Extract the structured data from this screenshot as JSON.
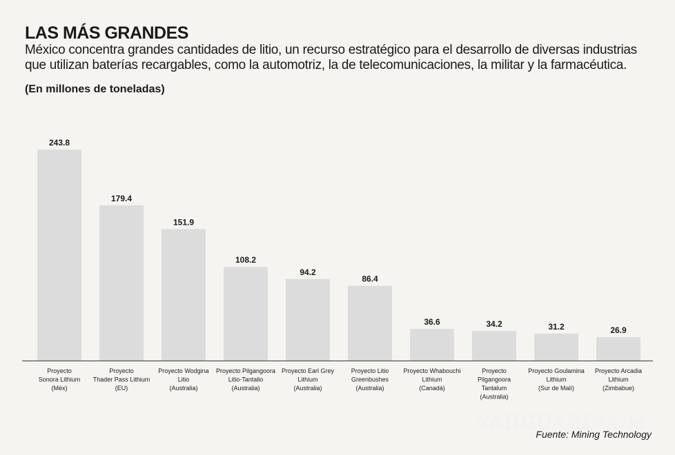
{
  "title": "LAS MÁS GRANDES",
  "subtitle": "México concentra  grandes cantidades de litio, un recurso estratégico para el desarrollo de diversas industrias que utilizan baterías recargables, como la automotriz, la de telecomunicaciones, la militar y la farmacéutica.",
  "unit_label": "(En millones de toneladas)",
  "source": "Fuente: Mining Technology",
  "watermark": "VANGUARDIA.M",
  "chart_data": {
    "type": "bar",
    "title": "LAS MÁS GRANDES",
    "ylabel": "(En millones de toneladas)",
    "ylim": [
      0,
      243.8
    ],
    "grid": false,
    "bar_color": "#dcdcdc",
    "categories": [
      [
        "Proyecto",
        "Sonora Lithium",
        "(Méx)"
      ],
      [
        "Proyecto",
        "Thader Pass Lithium",
        "(EU)"
      ],
      [
        "Proyecto Wodgina",
        "Litio",
        "(Australia)"
      ],
      [
        "Proyecto Pilgangoora",
        "Litio-Tantalio",
        "(Australia)"
      ],
      [
        "Proyecto Earl Grey",
        "Lithium",
        "(Australia)"
      ],
      [
        "Proyecto Litio",
        "Greenbushes",
        "(Australia)"
      ],
      [
        "Proyecto Whabouchi",
        "Lithium",
        "(Canadá)"
      ],
      [
        "Proyecto",
        "Pilgangoora",
        "Tantalum",
        "(Australia)"
      ],
      [
        "Proyecto Goulamina",
        "Lithium",
        "(Sur de Malí)"
      ],
      [
        "Proyecto Arcadia",
        "Lithium",
        "(Zimbabue)"
      ]
    ],
    "values": [
      243.8,
      179.4,
      151.9,
      108.2,
      94.2,
      86.4,
      36.6,
      34.2,
      31.2,
      26.9
    ],
    "value_labels": [
      "243.8",
      "179.4",
      "151.9",
      "108.2",
      "94.2",
      "86.4",
      "36.6",
      "34.2",
      "31.2",
      "26.9"
    ]
  }
}
